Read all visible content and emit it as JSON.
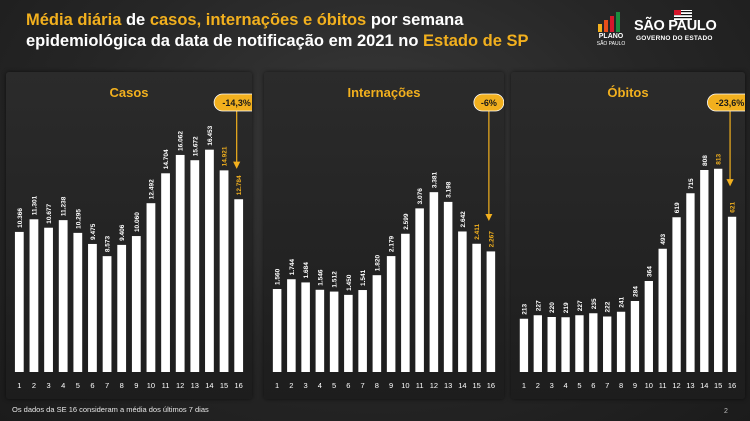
{
  "header": {
    "title_parts": [
      {
        "text": "Média diária",
        "hl": true
      },
      {
        "text": " de ",
        "hl": false
      },
      {
        "text": "casos, internações e óbitos",
        "hl": true
      },
      {
        "text": " por semana epidemiológica da data de notificação em 2021 no ",
        "hl": false
      },
      {
        "text": "Estado de SP",
        "hl": true
      }
    ],
    "logo_plano": "PLANO",
    "logo_plano_sub": "SÃO PAULO",
    "logo_sp": "SÃO PAULO",
    "logo_sp_sub": "GOVERNO DO ESTADO"
  },
  "colors": {
    "bar": "#ffffff",
    "label": "#ffffff",
    "highlight": "#f2b01e",
    "arrow": "#f2b01e"
  },
  "footnote": "Os dados da SE 16 consideram a média dos últimos 7 dias",
  "page_number": "2",
  "chart_data": [
    {
      "type": "bar",
      "title": "Casos",
      "categories": [
        "1",
        "2",
        "3",
        "4",
        "5",
        "6",
        "7",
        "8",
        "9",
        "10",
        "11",
        "12",
        "13",
        "14",
        "15",
        "16"
      ],
      "values": [
        10366,
        11301,
        10677,
        11238,
        10295,
        9475,
        8573,
        9406,
        10060,
        12492,
        14704,
        16062,
        15672,
        16453,
        14921,
        12784
      ],
      "value_labels": [
        "10.366",
        "11.301",
        "10.677",
        "11.238",
        "10.295",
        "9.475",
        "8.573",
        "9.406",
        "10.060",
        "12.492",
        "14.704",
        "16.062",
        "15.672",
        "16.453",
        "14.921",
        "12.784"
      ],
      "highlight_from_index": 14,
      "change_badge": "-14,3%",
      "ylim": [
        0,
        18500
      ]
    },
    {
      "type": "bar",
      "title": "Internações",
      "categories": [
        "1",
        "2",
        "3",
        "4",
        "5",
        "6",
        "7",
        "8",
        "9",
        "10",
        "11",
        "12",
        "13",
        "14",
        "15",
        "16"
      ],
      "values": [
        1560,
        1744,
        1684,
        1546,
        1512,
        1450,
        1541,
        1820,
        2179,
        2599,
        3076,
        3381,
        3198,
        2642,
        2411,
        2267
      ],
      "value_labels": [
        "1.560",
        "1.744",
        "1.684",
        "1.546",
        "1.512",
        "1.450",
        "1.541",
        "1.820",
        "2.179",
        "2.599",
        "3.076",
        "3.381",
        "3.198",
        "2.642",
        "2.411",
        "2.267"
      ],
      "highlight_from_index": 14,
      "change_badge": "-6%",
      "ylim": [
        0,
        4700
      ]
    },
    {
      "type": "bar",
      "title": "Óbitos",
      "categories": [
        "1",
        "2",
        "3",
        "4",
        "5",
        "6",
        "7",
        "8",
        "9",
        "10",
        "11",
        "12",
        "13",
        "14",
        "15",
        "16"
      ],
      "values": [
        213,
        227,
        220,
        219,
        227,
        235,
        222,
        241,
        284,
        364,
        493,
        619,
        715,
        808,
        813,
        621
      ],
      "value_labels": [
        "213",
        "227",
        "220",
        "219",
        "227",
        "235",
        "222",
        "241",
        "284",
        "364",
        "493",
        "619",
        "715",
        "808",
        "813",
        "621"
      ],
      "highlight_from_index": 14,
      "change_badge": "-23,6%",
      "ylim": [
        0,
        1000
      ]
    }
  ]
}
